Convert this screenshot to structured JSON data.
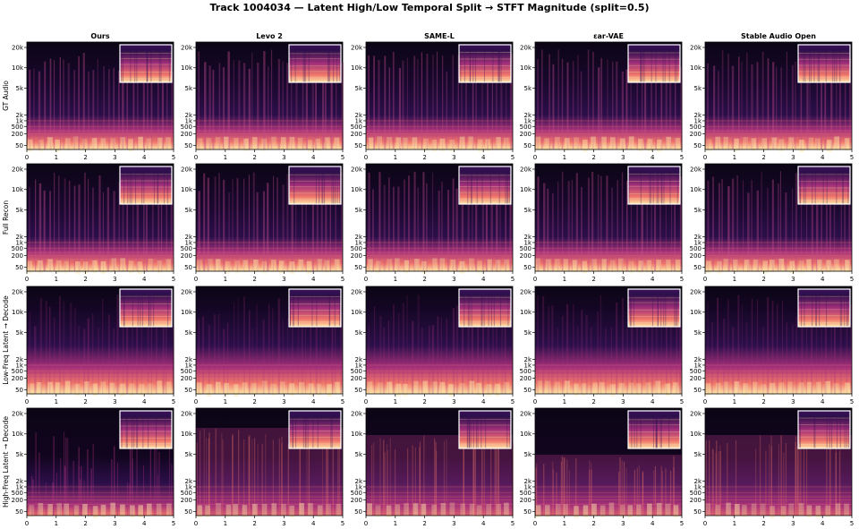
{
  "title": "Track 1004034 — Latent High/Low Temporal Split → STFT Magnitude (split=0.5)",
  "columns": [
    "Ours",
    "Levo 2",
    "SAME-L",
    "εar-VAE",
    "Stable Audio Open"
  ],
  "rows": [
    "GT Audio",
    "Full Recon",
    "Low-Freq Latent → Decode",
    "High-Freq Latent → Decode"
  ],
  "colors": {
    "background": "#0b0515",
    "low": "#2c0f4a",
    "mid": "#a3307a",
    "high": "#f0756a",
    "peak": "#fde6a8",
    "inset_border": "#ffffff"
  },
  "chart_data": {
    "type": "heatmap",
    "subtype": "spectrogram-grid",
    "colormap": "magma",
    "x_ticks": [
      "0",
      "1",
      "2",
      "3",
      "4",
      "5"
    ],
    "xlim": [
      0,
      5
    ],
    "y_ticks": [
      "20k",
      "10k",
      "5k",
      "2k",
      "1k",
      "500",
      "200",
      "50"
    ],
    "y_tick_values": [
      20000,
      10000,
      5000,
      2000,
      1000,
      500,
      200,
      50
    ],
    "ylim": [
      30,
      24000
    ],
    "y_scale": "symlog",
    "grid": false,
    "inset": "zoom region, top-right of each panel"
  }
}
